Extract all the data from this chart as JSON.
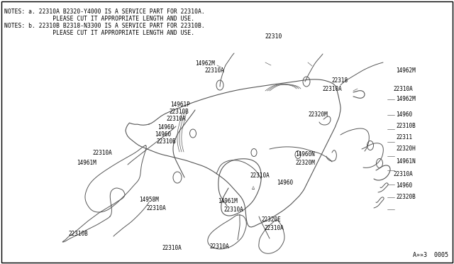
{
  "bg_color": "#ffffff",
  "border_color": "#000000",
  "line_color": "#555555",
  "text_color": "#000000",
  "fig_width": 6.4,
  "fig_height": 3.72,
  "dpi": 100,
  "notes_line1": "NOTES: a. 22310A B2320-Y4000 IS A SERVICE PART FOR 22310A.",
  "notes_line2": "              PLEASE CUT IT APPROPRIATE LENGTH AND USE.",
  "notes_line3": "NOTES: b. 22310B B2318-N3300 IS A SERVICE PART FOR 22310B.",
  "notes_line4": "              PLEASE CUT IT APPROPRIATE LENGTH AND USE.",
  "bottom_code": "A»»3  0005",
  "font_size_notes": 5.8,
  "font_size_labels": 5.5,
  "font_size_code": 6.0
}
